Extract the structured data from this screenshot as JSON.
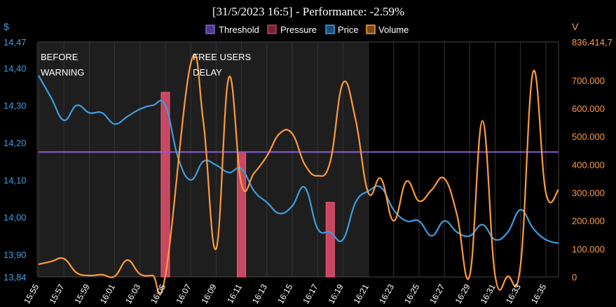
{
  "chart_data": {
    "type": "line",
    "title": "[31/5/2023 16:5] - Performance: -2.59%",
    "left_unit": "$",
    "right_unit": "V",
    "legend": [
      {
        "name": "Threshold",
        "color": "#8a5cd6"
      },
      {
        "name": "Pressure",
        "color": "#c0405a"
      },
      {
        "name": "Price",
        "color": "#3d9ee0"
      },
      {
        "name": "Volume",
        "color": "#ff9a3c"
      }
    ],
    "colors": {
      "price": "#3d9ee0",
      "volume": "#ff9a3c",
      "threshold": "#8a5cd6",
      "pressure": "#ff5577",
      "shaded": "#1e1e1e",
      "grid": "#333333"
    },
    "x_min": 0,
    "x_max": 41,
    "x_ticks": [
      {
        "x": 0,
        "label": "15:55"
      },
      {
        "x": 2,
        "label": "15:57"
      },
      {
        "x": 4,
        "label": "15:59"
      },
      {
        "x": 6,
        "label": "16:01"
      },
      {
        "x": 8,
        "label": "16:03"
      },
      {
        "x": 10,
        "label": "16:05"
      },
      {
        "x": 12,
        "label": "16:07"
      },
      {
        "x": 14,
        "label": "16:09"
      },
      {
        "x": 16,
        "label": "16:11"
      },
      {
        "x": 18,
        "label": "16:13"
      },
      {
        "x": 20,
        "label": "16:15"
      },
      {
        "x": 22,
        "label": "16:17"
      },
      {
        "x": 24,
        "label": "16:19"
      },
      {
        "x": 26,
        "label": "16:21"
      },
      {
        "x": 28,
        "label": "16:23"
      },
      {
        "x": 30,
        "label": "16:25"
      },
      {
        "x": 32,
        "label": "16:27"
      },
      {
        "x": 34,
        "label": "16:29"
      },
      {
        "x": 36,
        "label": "16:31"
      },
      {
        "x": 38,
        "label": "16:33"
      },
      {
        "x": 40,
        "label": "16:35"
      }
    ],
    "y_left": {
      "min": 13.84,
      "max": 14.47,
      "ticks": [
        {
          "v": 14.47,
          "label": "14,47"
        },
        {
          "v": 14.4,
          "label": "14,40"
        },
        {
          "v": 14.3,
          "label": "14,30"
        },
        {
          "v": 14.2,
          "label": "14,20"
        },
        {
          "v": 14.1,
          "label": "14,10"
        },
        {
          "v": 14.0,
          "label": "14,00"
        },
        {
          "v": 13.9,
          "label": "13,90"
        },
        {
          "v": 13.84,
          "label": "13,84"
        }
      ]
    },
    "y_right": {
      "min": 0,
      "max": 836414.7,
      "ticks": [
        {
          "v": 836414.7,
          "label": "836.414,7"
        },
        {
          "v": 700000,
          "label": "700.000"
        },
        {
          "v": 600000,
          "label": "600.000"
        },
        {
          "v": 500000,
          "label": "500.000"
        },
        {
          "v": 400000,
          "label": "400.000"
        },
        {
          "v": 300000,
          "label": "300.000"
        },
        {
          "v": 200000,
          "label": "200.000"
        },
        {
          "v": 100000,
          "label": "100.000"
        },
        {
          "v": 0,
          "label": "0"
        }
      ]
    },
    "shaded_region": [
      -0.5,
      26
    ],
    "annotations": [
      {
        "x": 0,
        "lines": [
          "BEFORE",
          "WARNING"
        ]
      },
      {
        "x": 12,
        "lines": [
          "FREE USERS",
          "DELAY"
        ]
      }
    ],
    "threshold": 14.175,
    "pressure_bars": [
      {
        "x": 10,
        "value": 14.335
      },
      {
        "x": 16,
        "value": 14.175
      },
      {
        "x": 23,
        "value": 14.04
      }
    ],
    "price": [
      [
        0,
        14.38
      ],
      [
        1,
        14.32
      ],
      [
        2,
        14.26
      ],
      [
        3,
        14.3
      ],
      [
        4,
        14.28
      ],
      [
        5,
        14.28
      ],
      [
        6,
        14.25
      ],
      [
        7,
        14.27
      ],
      [
        8,
        14.29
      ],
      [
        9,
        14.3
      ],
      [
        10,
        14.3
      ],
      [
        11,
        14.16
      ],
      [
        12,
        14.1
      ],
      [
        13,
        14.15
      ],
      [
        14,
        14.14
      ],
      [
        15,
        14.12
      ],
      [
        16,
        14.13
      ],
      [
        17,
        14.07
      ],
      [
        18,
        14.04
      ],
      [
        19,
        14.01
      ],
      [
        20,
        14.03
      ],
      [
        21,
        14.08
      ],
      [
        22,
        13.97
      ],
      [
        23,
        13.96
      ],
      [
        24,
        13.94
      ],
      [
        25,
        14.04
      ],
      [
        26,
        14.07
      ],
      [
        27,
        14.08
      ],
      [
        28,
        14.02
      ],
      [
        29,
        13.99
      ],
      [
        30,
        13.99
      ],
      [
        31,
        13.95
      ],
      [
        32,
        13.99
      ],
      [
        33,
        13.96
      ],
      [
        34,
        13.95
      ],
      [
        35,
        13.98
      ],
      [
        36,
        13.94
      ],
      [
        37,
        13.96
      ],
      [
        38,
        14.02
      ],
      [
        39,
        13.97
      ],
      [
        40,
        13.94
      ],
      [
        41,
        13.93
      ]
    ],
    "volume": [
      [
        0,
        45000
      ],
      [
        1,
        55000
      ],
      [
        2,
        65000
      ],
      [
        3,
        15000
      ],
      [
        4,
        5000
      ],
      [
        5,
        8000
      ],
      [
        6,
        2000
      ],
      [
        7,
        60000
      ],
      [
        8,
        10000
      ],
      [
        9,
        5000
      ],
      [
        10,
        5000
      ],
      [
        12,
        760000
      ],
      [
        13,
        550000
      ],
      [
        14,
        100000
      ],
      [
        15,
        710000
      ],
      [
        16,
        330000
      ],
      [
        17,
        370000
      ],
      [
        18,
        430000
      ],
      [
        19,
        510000
      ],
      [
        20,
        510000
      ],
      [
        21,
        400000
      ],
      [
        22,
        360000
      ],
      [
        23,
        410000
      ],
      [
        24,
        690000
      ],
      [
        25,
        560000
      ],
      [
        26,
        300000
      ],
      [
        27,
        350000
      ],
      [
        28,
        200000
      ],
      [
        29,
        340000
      ],
      [
        30,
        270000
      ],
      [
        31,
        310000
      ],
      [
        32,
        350000
      ],
      [
        33,
        220000
      ],
      [
        34,
        5000
      ],
      [
        35,
        555000
      ],
      [
        36,
        5000
      ],
      [
        37,
        2000
      ],
      [
        38,
        40000
      ],
      [
        39,
        730000
      ],
      [
        40,
        300000
      ],
      [
        41,
        310000
      ]
    ]
  }
}
